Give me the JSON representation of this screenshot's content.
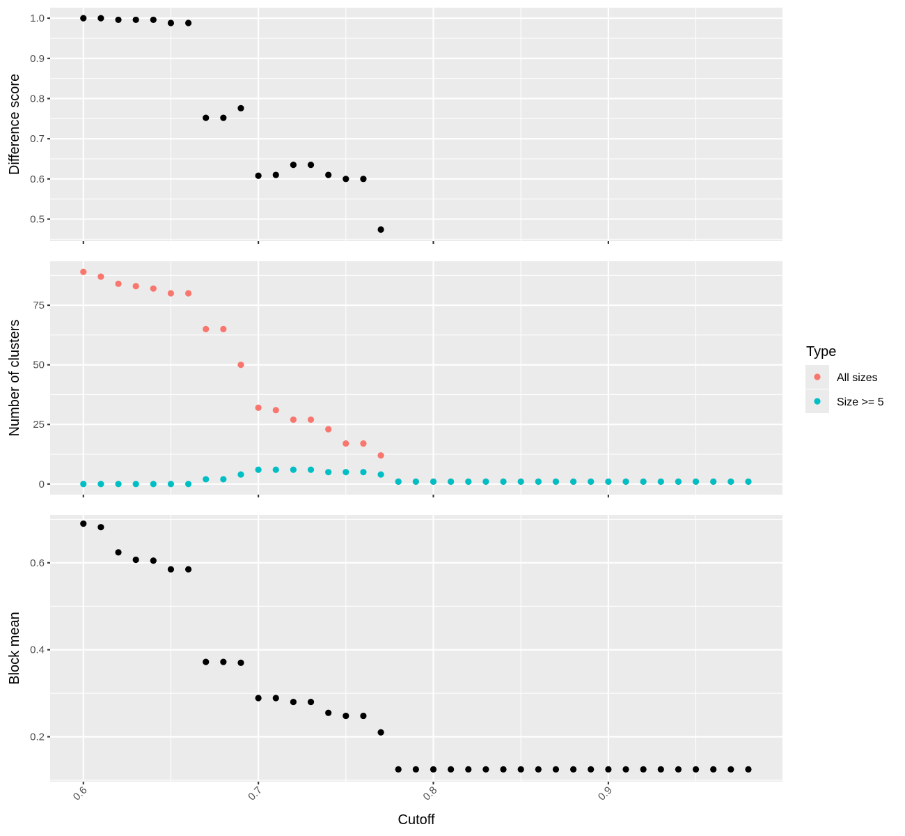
{
  "chart_data": [
    {
      "type": "scatter",
      "title": "",
      "xlabel": "",
      "ylabel": "Difference score",
      "xlim": [
        0.581,
        0.9995
      ],
      "ylim": [
        0.4454,
        1.0262
      ],
      "x_ticks": [
        0.6,
        0.7,
        0.8,
        0.9
      ],
      "y_ticks": [
        0.5,
        0.6,
        0.7,
        0.8,
        0.9,
        1.0
      ],
      "y_tick_labels": [
        "0.5",
        "0.6",
        "0.7",
        "0.8",
        "0.9",
        "1.0"
      ],
      "grid": true,
      "series": [
        {
          "color": "#000000",
          "x": [
            0.6,
            0.61,
            0.62,
            0.63,
            0.64,
            0.65,
            0.66,
            0.67,
            0.68,
            0.69,
            0.7,
            0.71,
            0.72,
            0.73,
            0.74,
            0.75,
            0.76,
            0.77
          ],
          "y": [
            1.0,
            1.0,
            0.996,
            0.996,
            0.996,
            0.988,
            0.988,
            0.752,
            0.752,
            0.776,
            0.608,
            0.61,
            0.635,
            0.635,
            0.61,
            0.6,
            0.6,
            0.474
          ]
        }
      ]
    },
    {
      "type": "scatter",
      "title": "",
      "xlabel": "",
      "ylabel": "Number of clusters",
      "xlim": [
        0.581,
        0.9995
      ],
      "ylim": [
        -4.45,
        93.45
      ],
      "x_ticks": [
        0.6,
        0.7,
        0.8,
        0.9
      ],
      "y_ticks": [
        0,
        25,
        50,
        75
      ],
      "y_tick_labels": [
        "0",
        "25",
        "50",
        "75"
      ],
      "grid": true,
      "legend": {
        "title": "Type",
        "placement": "right"
      },
      "series": [
        {
          "name": "All sizes",
          "color": "#F8766D",
          "x": [
            0.6,
            0.61,
            0.62,
            0.63,
            0.64,
            0.65,
            0.66,
            0.67,
            0.68,
            0.69,
            0.7,
            0.71,
            0.72,
            0.73,
            0.74,
            0.75,
            0.76,
            0.77,
            0.78,
            0.79,
            0.8,
            0.81,
            0.82,
            0.83,
            0.84,
            0.85,
            0.86,
            0.87,
            0.88,
            0.89,
            0.9,
            0.91,
            0.92,
            0.93,
            0.94,
            0.95,
            0.96,
            0.97,
            0.98
          ],
          "y": [
            89,
            87,
            84,
            83,
            82,
            80,
            80,
            65,
            65,
            50,
            32,
            31,
            27,
            27,
            23,
            17,
            17,
            12,
            1,
            1,
            1,
            1,
            1,
            1,
            1,
            1,
            1,
            1,
            1,
            1,
            1,
            1,
            1,
            1,
            1,
            1,
            1,
            1,
            1
          ]
        },
        {
          "name": "Size >= 5",
          "color": "#00BFC4",
          "x": [
            0.6,
            0.61,
            0.62,
            0.63,
            0.64,
            0.65,
            0.66,
            0.67,
            0.68,
            0.69,
            0.7,
            0.71,
            0.72,
            0.73,
            0.74,
            0.75,
            0.76,
            0.77,
            0.78,
            0.79,
            0.8,
            0.81,
            0.82,
            0.83,
            0.84,
            0.85,
            0.86,
            0.87,
            0.88,
            0.89,
            0.9,
            0.91,
            0.92,
            0.93,
            0.94,
            0.95,
            0.96,
            0.97,
            0.98
          ],
          "y": [
            0,
            0,
            0,
            0,
            0,
            0,
            0,
            2,
            2,
            4,
            6,
            6,
            6,
            6,
            5,
            5,
            5,
            4,
            1,
            1,
            1,
            1,
            1,
            1,
            1,
            1,
            1,
            1,
            1,
            1,
            1,
            1,
            1,
            1,
            1,
            1,
            1,
            1,
            1
          ]
        }
      ]
    },
    {
      "type": "scatter",
      "title": "",
      "xlabel": "Cutoff",
      "ylabel": "Block mean",
      "xlim": [
        0.581,
        0.9995
      ],
      "ylim": [
        0.0967,
        0.7103
      ],
      "x_ticks": [
        0.6,
        0.7,
        0.8,
        0.9
      ],
      "x_tick_labels": [
        "0.6",
        "0.7",
        "0.8",
        "0.9"
      ],
      "y_ticks": [
        0.2,
        0.4,
        0.6
      ],
      "y_tick_labels": [
        "0.2",
        "0.4",
        "0.6"
      ],
      "grid": true,
      "series": [
        {
          "color": "#000000",
          "x": [
            0.6,
            0.61,
            0.62,
            0.63,
            0.64,
            0.65,
            0.66,
            0.67,
            0.68,
            0.69,
            0.7,
            0.71,
            0.72,
            0.73,
            0.74,
            0.75,
            0.76,
            0.77,
            0.78,
            0.79,
            0.8,
            0.81,
            0.82,
            0.83,
            0.84,
            0.85,
            0.86,
            0.87,
            0.88,
            0.89,
            0.9,
            0.91,
            0.92,
            0.93,
            0.94,
            0.95,
            0.96,
            0.97,
            0.98
          ],
          "y": [
            0.69,
            0.682,
            0.624,
            0.607,
            0.605,
            0.585,
            0.585,
            0.372,
            0.372,
            0.37,
            0.289,
            0.289,
            0.28,
            0.28,
            0.255,
            0.248,
            0.248,
            0.21,
            0.125,
            0.125,
            0.125,
            0.125,
            0.125,
            0.125,
            0.125,
            0.125,
            0.125,
            0.125,
            0.125,
            0.125,
            0.125,
            0.125,
            0.125,
            0.125,
            0.125,
            0.125,
            0.125,
            0.125,
            0.125
          ]
        }
      ]
    }
  ]
}
